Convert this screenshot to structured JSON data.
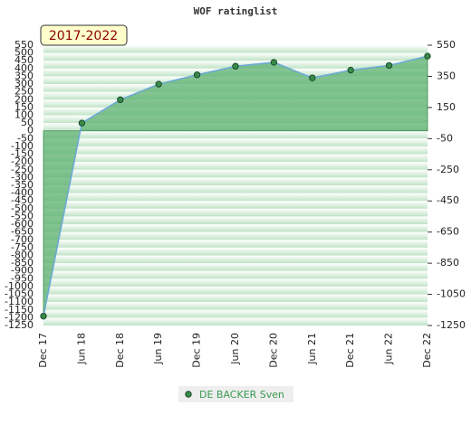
{
  "chart_data": {
    "type": "area",
    "title": "WOF ratinglist",
    "badge": "2017-2022",
    "categories": [
      "Dec 17",
      "Jun 18",
      "Dec 18",
      "Jun 19",
      "Dec 19",
      "Jun 20",
      "Dec 20",
      "Jun 21",
      "Dec 21",
      "Jun 22",
      "Dec 22"
    ],
    "series": [
      {
        "name": "DE BACKER Sven",
        "color": "#6aa8d8",
        "fill": "#5cb070",
        "marker": "#3a8a4a",
        "values": [
          -1190,
          50,
          200,
          300,
          360,
          415,
          440,
          340,
          390,
          420,
          480
        ]
      }
    ],
    "ylim": [
      -1250,
      550
    ],
    "yticks": [
      550,
      500,
      450,
      400,
      350,
      300,
      250,
      200,
      150,
      100,
      50,
      0,
      -50,
      -100,
      -150,
      -200,
      -250,
      -300,
      -350,
      -400,
      -450,
      -500,
      -550,
      -600,
      -650,
      -700,
      -750,
      -800,
      -850,
      -900,
      -950,
      -1000,
      -1050,
      -1100,
      -1150,
      -1200,
      -1250
    ],
    "y2lim": [
      -1250,
      550
    ],
    "y2ticks": [
      550,
      350,
      150,
      -50,
      -250,
      -450,
      -650,
      -850,
      -1050,
      -1250
    ],
    "grid": true
  }
}
